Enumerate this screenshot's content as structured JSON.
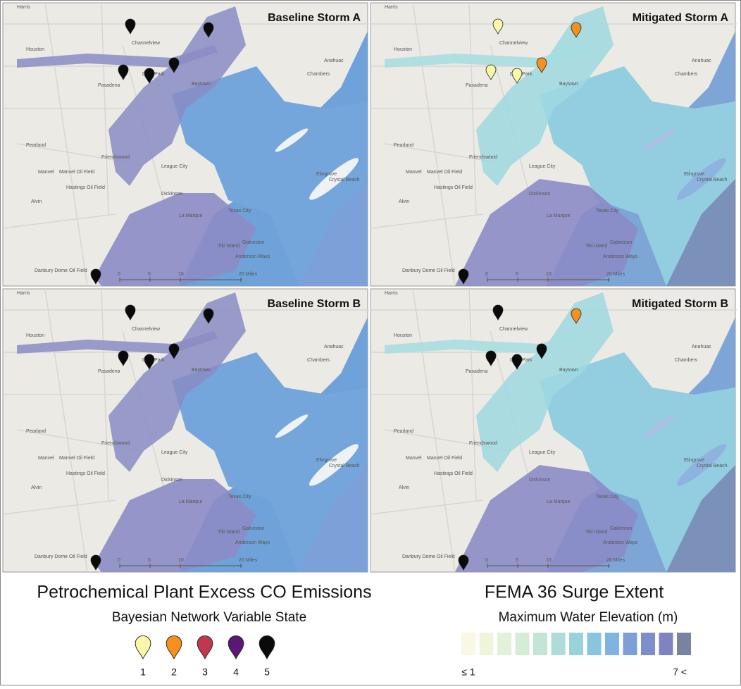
{
  "panels": [
    {
      "title": "Baseline Storm A",
      "markers": [
        5,
        5,
        5,
        5,
        5,
        5
      ]
    },
    {
      "title": "Mitigated Storm A",
      "markers": [
        1,
        2,
        1,
        1,
        2,
        5
      ]
    },
    {
      "title": "Baseline Storm B",
      "markers": [
        5,
        5,
        5,
        5,
        5,
        5
      ]
    },
    {
      "title": "Mitigated Storm B",
      "markers": [
        5,
        2,
        5,
        5,
        5,
        5
      ]
    }
  ],
  "map_labels": [
    "Harris",
    "Channelview",
    "Houston",
    "Pasadena",
    "Deer Park",
    "Baytown",
    "Anahuac",
    "Chambers",
    "Pearland",
    "Friendswood",
    "League City",
    "Manvel Oil Field",
    "Manvel",
    "Hastings Oil Field",
    "Alvin",
    "Dickinson",
    "Texas City",
    "La Marque",
    "Galveston",
    "Tiki Island",
    "Anderson Ways",
    "Elingrove",
    "Crystal Beach",
    "Danbury Dome Oil Field"
  ],
  "scale_labels": [
    "0",
    "5",
    "10",
    "20 Miles"
  ],
  "legend": {
    "title": "Petrochemical Plant Excess CO Emissions",
    "subtitle": "Bayesian Network Variable State",
    "states": [
      {
        "label": "1",
        "color": "#fbf7a8"
      },
      {
        "label": "2",
        "color": "#f7901e"
      },
      {
        "label": "3",
        "color": "#c0374f"
      },
      {
        "label": "4",
        "color": "#5b1677"
      },
      {
        "label": "5",
        "color": "#0a0a0a"
      }
    ]
  },
  "surge_legend": {
    "title": "FEMA 36 Surge Extent",
    "subtitle": "Maximum Water Elevation (m)",
    "colors": [
      "#f8f8e4",
      "#eef5dc",
      "#e4f1d9",
      "#d5ecd6",
      "#c2e5d6",
      "#aedcd8",
      "#98d3dc",
      "#88c6e0",
      "#80b3df",
      "#7d9fd8",
      "#7e8ecd",
      "#7f84c0",
      "#7a82a2"
    ],
    "min_label": "≤ 1",
    "max_label": "7 <"
  }
}
